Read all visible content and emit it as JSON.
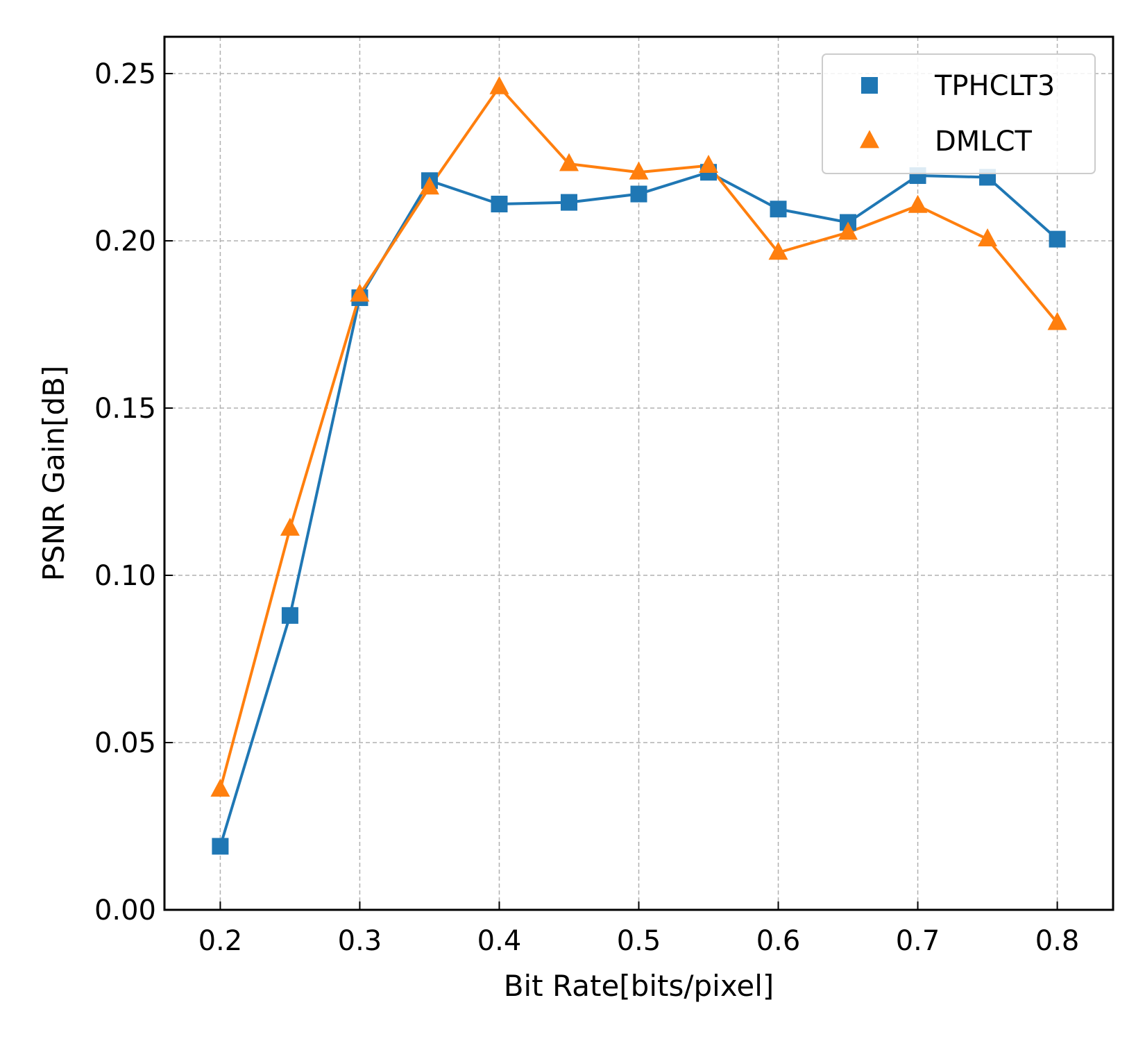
{
  "chart_data": {
    "type": "line",
    "xlabel": "Bit Rate[bits/pixel]",
    "ylabel": "PSNR Gain[dB]",
    "xlim": [
      0.16,
      0.84
    ],
    "ylim": [
      0.0,
      0.261
    ],
    "xticks": [
      0.2,
      0.3,
      0.4,
      0.5,
      0.6,
      0.7,
      0.8
    ],
    "xtick_labels": [
      "0.2",
      "0.3",
      "0.4",
      "0.5",
      "0.6",
      "0.7",
      "0.8"
    ],
    "yticks": [
      0.0,
      0.05,
      0.1,
      0.15,
      0.2,
      0.25
    ],
    "ytick_labels": [
      "0.00",
      "0.05",
      "0.10",
      "0.15",
      "0.20",
      "0.25"
    ],
    "grid": true,
    "legend_position": "top-right",
    "x": [
      0.2,
      0.25,
      0.3,
      0.35,
      0.4,
      0.45,
      0.5,
      0.55,
      0.6,
      0.65,
      0.7,
      0.75,
      0.8
    ],
    "series": [
      {
        "name": "TPHCLT3",
        "color": "#1f77b4",
        "marker": "square",
        "values": [
          0.019,
          0.088,
          0.183,
          0.218,
          0.211,
          0.2115,
          0.214,
          0.2205,
          0.2095,
          0.2055,
          0.2195,
          0.219,
          0.2005
        ]
      },
      {
        "name": "DMLCT",
        "color": "#ff7f0e",
        "marker": "triangle",
        "values": [
          0.036,
          0.114,
          0.184,
          0.216,
          0.246,
          0.223,
          0.2205,
          0.2225,
          0.1965,
          0.2025,
          0.2105,
          0.2005,
          0.1755
        ]
      }
    ]
  }
}
